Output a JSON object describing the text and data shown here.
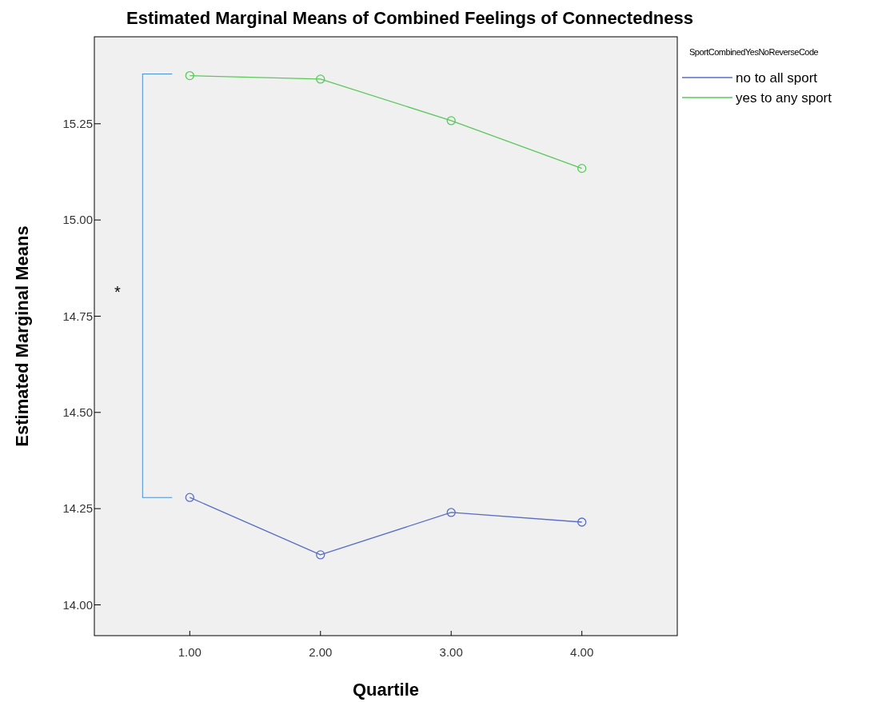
{
  "chart_data": {
    "type": "line",
    "title": "Estimated Marginal Means of Combined Feelings of Connectedness",
    "xlabel": "Quartile",
    "ylabel": "Estimated Marginal Means",
    "legend_title": "SportCombinedYesNoReverseCode",
    "x": [
      1,
      2,
      3,
      4
    ],
    "series": [
      {
        "name": "no to all sport",
        "color": "#5a6ec6",
        "values": [
          14.279,
          14.13,
          14.24,
          14.215
        ]
      },
      {
        "name": "yes to any sport",
        "color": "#5ac85a",
        "values": [
          15.375,
          15.366,
          15.258,
          15.134
        ]
      }
    ],
    "xlim": [
      0.27,
      4.73
    ],
    "ylim": [
      13.92,
      15.476
    ],
    "xticks": [
      {
        "value": 1,
        "label": "1.00"
      },
      {
        "value": 2,
        "label": "2.00"
      },
      {
        "value": 3,
        "label": "3.00"
      },
      {
        "value": 4,
        "label": "4.00"
      }
    ],
    "yticks": [
      {
        "value": 14,
        "label": "14.00"
      },
      {
        "value": 14.25,
        "label": "14.25"
      },
      {
        "value": 14.5,
        "label": "14.50"
      },
      {
        "value": 14.75,
        "label": "14.75"
      },
      {
        "value": 15,
        "label": "15.00"
      },
      {
        "value": 15.25,
        "label": "15.25"
      }
    ],
    "annotations": [
      "*"
    ],
    "marker": "circle",
    "legend": "top right",
    "grid": false
  }
}
